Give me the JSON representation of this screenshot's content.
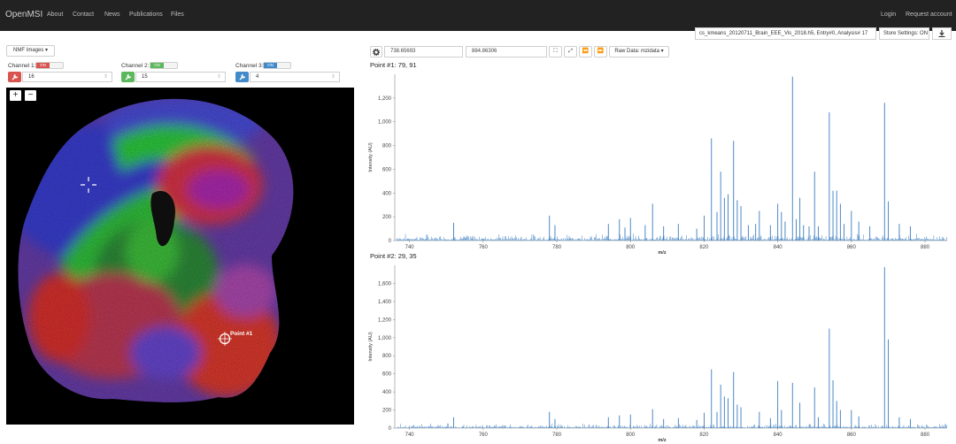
{
  "navbar": {
    "brand": "OpenMSI",
    "links": [
      "About",
      "Contact",
      "News",
      "Publications",
      "Files"
    ],
    "right_links": [
      "Login",
      "Request account"
    ]
  },
  "toolbar": {
    "dataset": "cs_kmeans_20120711_Brain_EEE_Vis_2018.h5, Entry#0, Analysis# 17",
    "store_settings": "Store Settings: ON",
    "download_icon": "download-icon"
  },
  "image_controls": {
    "dropdown_label": "NMF Images ▾",
    "channels": [
      {
        "label": "Channel 1:",
        "toggle": "ON",
        "value": "16",
        "color": "#d9534f"
      },
      {
        "label": "Channel 2:",
        "toggle": "ON",
        "value": "15",
        "color": "#5cb85c"
      },
      {
        "label": "Channel 3:",
        "toggle": "ON",
        "value": "4",
        "color": "#428bca"
      }
    ],
    "zoom_in": "+",
    "zoom_out": "−",
    "point_label": "Point #1"
  },
  "spectrum_controls": {
    "mz_min": "738.65693",
    "mz_max": "884.86306",
    "raw_data": "Raw Data: mzidata ▾"
  },
  "chart_data": [
    {
      "type": "line",
      "title": "Point #1: 79, 91",
      "xlabel": "m/z",
      "ylabel": "Intensity (AU)",
      "xlim": [
        736,
        886
      ],
      "ylim": [
        0,
        1400
      ],
      "xticks": [
        740,
        760,
        780,
        800,
        820,
        840,
        860,
        880
      ],
      "yticks": [
        0,
        200,
        400,
        600,
        800,
        1000,
        1200
      ],
      "ytick_labels": [
        "0",
        "200",
        "400",
        "600",
        "800",
        "1,000",
        "1,200"
      ],
      "peaks": [
        [
          752,
          150
        ],
        [
          778,
          210
        ],
        [
          779.5,
          130
        ],
        [
          794,
          140
        ],
        [
          797,
          180
        ],
        [
          798.5,
          110
        ],
        [
          800,
          190
        ],
        [
          804,
          130
        ],
        [
          806,
          310
        ],
        [
          809,
          120
        ],
        [
          813,
          140
        ],
        [
          818,
          100
        ],
        [
          820,
          210
        ],
        [
          822,
          860
        ],
        [
          823.5,
          240
        ],
        [
          824.5,
          580
        ],
        [
          825.5,
          360
        ],
        [
          826.5,
          390
        ],
        [
          828,
          840
        ],
        [
          829,
          340
        ],
        [
          830,
          290
        ],
        [
          832,
          130
        ],
        [
          834,
          140
        ],
        [
          835,
          250
        ],
        [
          838,
          130
        ],
        [
          840,
          310
        ],
        [
          841,
          240
        ],
        [
          842,
          160
        ],
        [
          844,
          1380
        ],
        [
          845,
          180
        ],
        [
          846,
          360
        ],
        [
          847,
          130
        ],
        [
          848.5,
          120
        ],
        [
          850,
          580
        ],
        [
          851,
          120
        ],
        [
          854,
          1080
        ],
        [
          855,
          420
        ],
        [
          856,
          420
        ],
        [
          857,
          310
        ],
        [
          858,
          140
        ],
        [
          860,
          250
        ],
        [
          862,
          160
        ],
        [
          865,
          120
        ],
        [
          869,
          1160
        ],
        [
          870,
          330
        ],
        [
          873,
          140
        ],
        [
          876,
          120
        ]
      ],
      "baseline": 25
    },
    {
      "type": "line",
      "title": "Point #2: 29, 35",
      "xlabel": "m/z",
      "ylabel": "Intensity (AU)",
      "xlim": [
        736,
        886
      ],
      "ylim": [
        0,
        1800
      ],
      "xticks": [
        740,
        760,
        780,
        800,
        820,
        840,
        860,
        880
      ],
      "yticks": [
        0,
        200,
        400,
        600,
        800,
        1000,
        1200,
        1400,
        1600
      ],
      "ytick_labels": [
        "0",
        "200",
        "400",
        "600",
        "800",
        "1,000",
        "1,200",
        "1,400",
        "1,600"
      ],
      "peaks": [
        [
          752,
          120
        ],
        [
          778,
          180
        ],
        [
          779.5,
          100
        ],
        [
          794,
          120
        ],
        [
          797,
          140
        ],
        [
          800,
          150
        ],
        [
          806,
          210
        ],
        [
          809,
          100
        ],
        [
          813,
          110
        ],
        [
          818,
          90
        ],
        [
          820,
          170
        ],
        [
          822,
          650
        ],
        [
          823.5,
          180
        ],
        [
          824.5,
          480
        ],
        [
          825.5,
          350
        ],
        [
          826.5,
          330
        ],
        [
          828,
          620
        ],
        [
          829,
          260
        ],
        [
          830,
          230
        ],
        [
          835,
          180
        ],
        [
          838,
          110
        ],
        [
          840,
          520
        ],
        [
          841,
          200
        ],
        [
          844,
          500
        ],
        [
          846,
          280
        ],
        [
          850,
          450
        ],
        [
          851,
          120
        ],
        [
          854,
          1100
        ],
        [
          855,
          530
        ],
        [
          856,
          300
        ],
        [
          857,
          200
        ],
        [
          860,
          200
        ],
        [
          862,
          130
        ],
        [
          869,
          1780
        ],
        [
          870,
          980
        ],
        [
          873,
          120
        ],
        [
          876,
          100
        ]
      ],
      "baseline": 22
    }
  ]
}
